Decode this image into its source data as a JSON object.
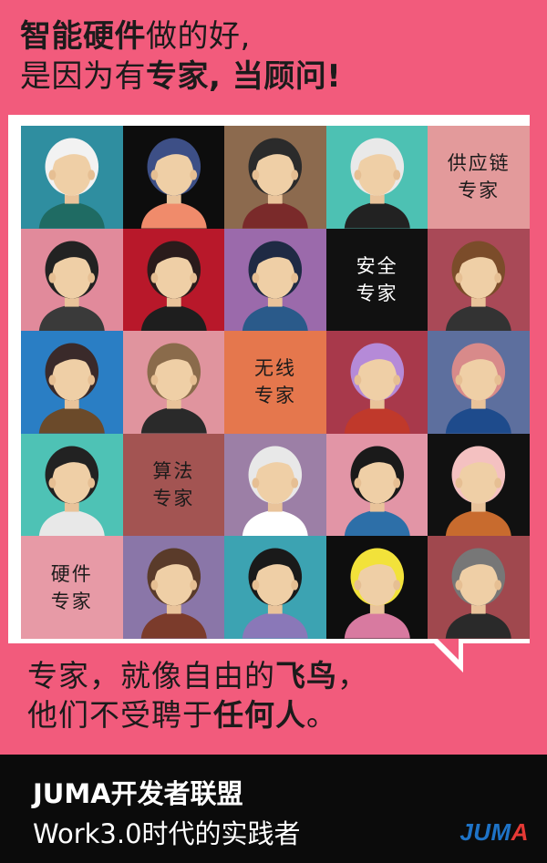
{
  "headline": {
    "line1_bold": "智能硬件",
    "line1_rest": "做的好,",
    "line2_pre": "是因为有",
    "line2_bold": "专家, 当顾问!"
  },
  "grid": {
    "cells": [
      {
        "kind": "avatar",
        "bg": "#2f8ea0"
      },
      {
        "kind": "avatar",
        "bg": "#0d0d0d"
      },
      {
        "kind": "avatar",
        "bg": "#8c6a4e"
      },
      {
        "kind": "avatar",
        "bg": "#4dc1b3"
      },
      {
        "kind": "label",
        "bg": "#e39a9b",
        "text": "供应链\n专家",
        "color": "#1c1b1b"
      },
      {
        "kind": "avatar",
        "bg": "#e18a9b"
      },
      {
        "kind": "avatar",
        "bg": "#b8182a"
      },
      {
        "kind": "avatar",
        "bg": "#9b6aab"
      },
      {
        "kind": "label",
        "bg": "#111111",
        "text": "安全\n专家",
        "color": "#ffffff"
      },
      {
        "kind": "avatar",
        "bg": "#a94957"
      },
      {
        "kind": "avatar",
        "bg": "#2a7ec4"
      },
      {
        "kind": "avatar",
        "bg": "#e0949e"
      },
      {
        "kind": "label",
        "bg": "#e5774d",
        "text": "无线\n专家",
        "color": "#1c1b1b"
      },
      {
        "kind": "avatar",
        "bg": "#a8394b"
      },
      {
        "kind": "avatar",
        "bg": "#5d6f9e"
      },
      {
        "kind": "avatar",
        "bg": "#4ec2b5"
      },
      {
        "kind": "label",
        "bg": "#a35452",
        "text": "算法\n专家",
        "color": "#1c1b1b"
      },
      {
        "kind": "avatar",
        "bg": "#9c7fa6"
      },
      {
        "kind": "avatar",
        "bg": "#e295a6"
      },
      {
        "kind": "avatar",
        "bg": "#111111"
      },
      {
        "kind": "label",
        "bg": "#e79aa6",
        "text": "硬件\n专家",
        "color": "#1c1b1b"
      },
      {
        "kind": "avatar",
        "bg": "#8a76a8"
      },
      {
        "kind": "avatar",
        "bg": "#3ca3b2"
      },
      {
        "kind": "avatar",
        "bg": "#0e0e0e"
      },
      {
        "kind": "avatar",
        "bg": "#a0484e"
      }
    ]
  },
  "quote": {
    "line1_pre": "专家，就像自由的",
    "line1_bold": "飞鸟",
    "line1_end": "，",
    "line2_pre": "他们不受聘于",
    "line2_bold": "任何人",
    "line2_end": "。"
  },
  "footer": {
    "line1": "JUMA开发者联盟",
    "line2": "Work3.0时代的实践者",
    "logo_blue": "JUM",
    "logo_red": "A"
  },
  "colors": {
    "background": "#f25b7c",
    "footer": "#0b0b0b",
    "text": "#1c1b1b"
  }
}
